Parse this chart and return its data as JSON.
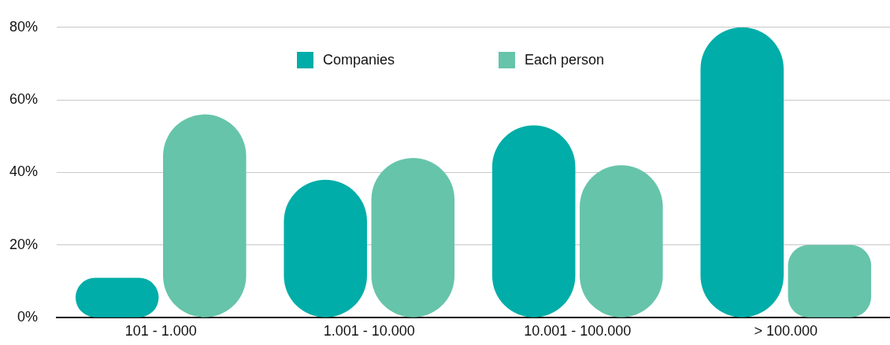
{
  "chart_data": {
    "type": "bar",
    "categories": [
      "101 - 1.000",
      "1.001 - 10.000",
      "10.001 - 100.000",
      "> 100.000"
    ],
    "series": [
      {
        "name": "Companies",
        "color": "#00ada8",
        "values": [
          11,
          38,
          53,
          80
        ]
      },
      {
        "name": "Each person",
        "color": "#66c4aa",
        "values": [
          56,
          44,
          42,
          20
        ]
      }
    ],
    "ylim": [
      0,
      80
    ],
    "yticks": [
      {
        "value": 0,
        "label": "0%"
      },
      {
        "value": 20,
        "label": "20%"
      },
      {
        "value": 40,
        "label": "40%"
      },
      {
        "value": 60,
        "label": "60%"
      },
      {
        "value": 80,
        "label": "80%"
      }
    ],
    "grid": "y",
    "legend": "top"
  }
}
